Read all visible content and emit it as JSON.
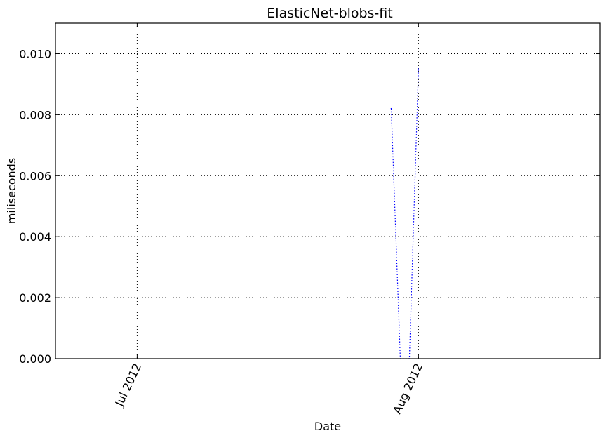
{
  "chart_data": {
    "type": "line",
    "title": "ElasticNet-blobs-fit",
    "xlabel": "Date",
    "ylabel": "miliseconds",
    "x_axis_kind": "date",
    "xlim": [
      "2012-06-22",
      "2012-08-21"
    ],
    "ylim": [
      0,
      0.011
    ],
    "x_ticks": [
      {
        "value": "2012-07-01",
        "label": "Jul 2012"
      },
      {
        "value": "2012-08-01",
        "label": "Aug 2012"
      }
    ],
    "y_ticks": [
      {
        "value": 0.0,
        "label": "0.000"
      },
      {
        "value": 0.002,
        "label": "0.002"
      },
      {
        "value": 0.004,
        "label": "0.004"
      },
      {
        "value": 0.006,
        "label": "0.006"
      },
      {
        "value": 0.008,
        "label": "0.008"
      },
      {
        "value": 0.01,
        "label": "0.010"
      }
    ],
    "grid": true,
    "series": [
      {
        "color": "#0000ff",
        "linestyle": "dotted",
        "x": [
          "2012-07-29",
          "2012-07-30",
          "2012-07-31",
          "2012-08-01"
        ],
        "y": [
          0.0082,
          0.0,
          0.0,
          0.0095
        ]
      }
    ]
  }
}
